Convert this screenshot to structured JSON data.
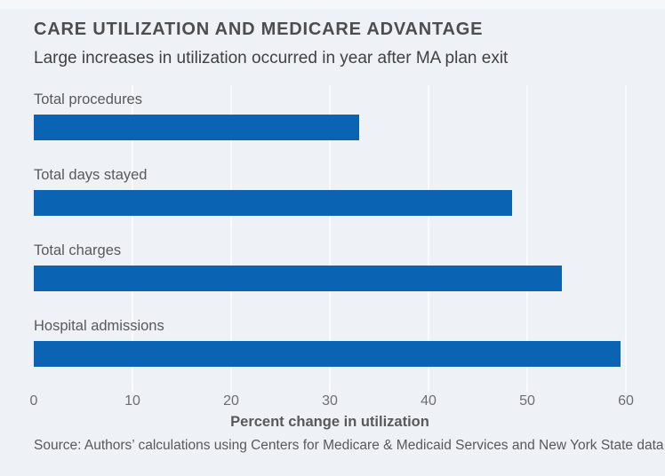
{
  "chart_data": {
    "type": "bar",
    "orientation": "horizontal",
    "title": "CARE UTILIZATION AND MEDICARE ADVANTAGE",
    "subtitle": "Large increases in utilization occurred in year after MA plan exit",
    "categories": [
      "Total procedures",
      "Total days stayed",
      "Total charges",
      "Hospital admissions"
    ],
    "values": [
      33,
      48.5,
      53.5,
      59.5
    ],
    "xlabel": "Percent change in utilization",
    "xlim": [
      0,
      60
    ],
    "xticks": [
      0,
      10,
      20,
      30,
      40,
      50,
      60
    ],
    "grid": "vertical-gridlines-on",
    "legend": "none",
    "source": "Source: Authors’ calculations using Centers for Medicare & Medicaid Services and New York State data",
    "colors": {
      "bar": "#0b63b4",
      "background": "#eef1f5",
      "gridline": "#fafbfd",
      "title_text": "#4d4d4f",
      "subtitle_text": "#414042",
      "label_text": "#58595b",
      "tick_text": "#6d6e71"
    }
  }
}
